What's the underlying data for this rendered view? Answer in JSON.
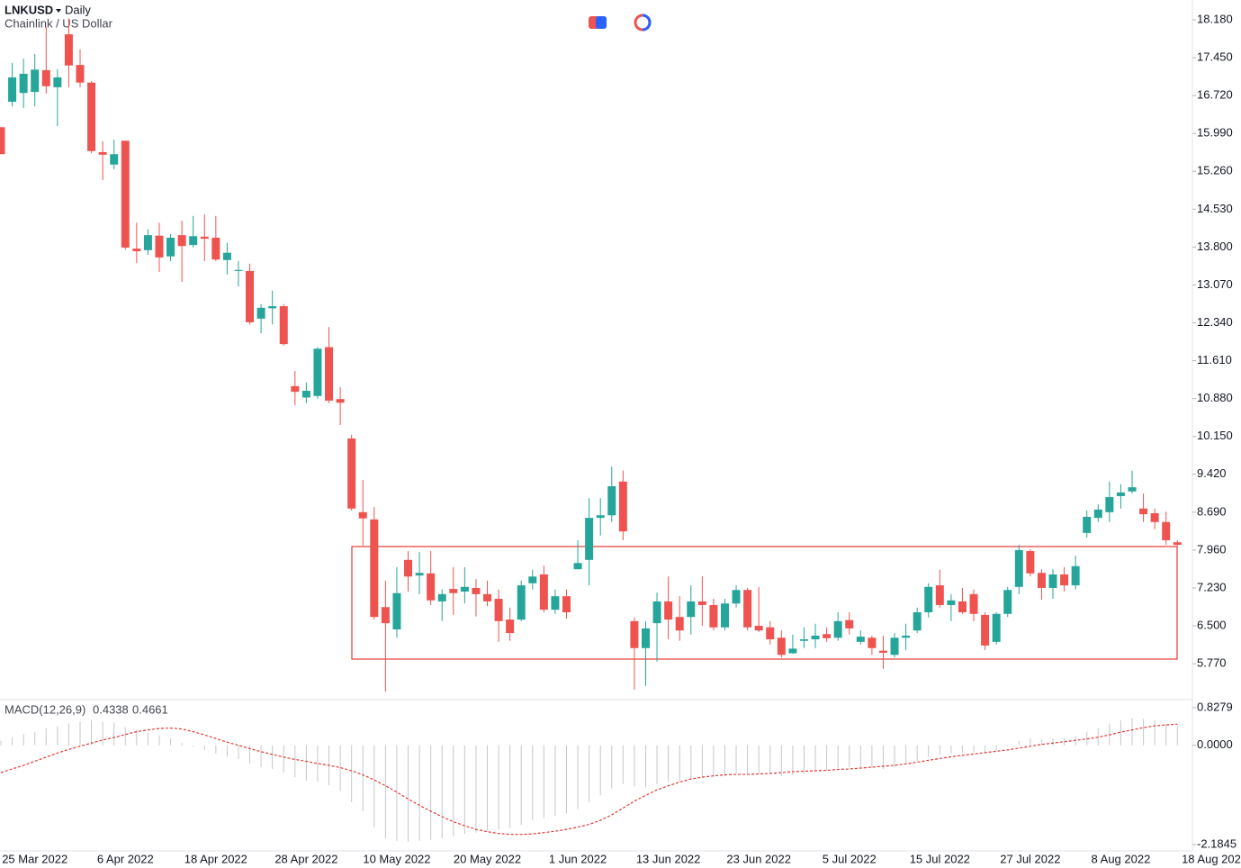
{
  "header": {
    "symbol": "LNKUSD",
    "interval": "Daily",
    "description": "Chainlink / US Dollar"
  },
  "chart_data": [
    {
      "type": "candlestick",
      "categories": [
        null,
        null,
        null,
        "25 Mar 2022",
        null,
        null,
        null,
        null,
        null,
        null,
        null,
        "6 Apr 2022",
        null,
        null,
        null,
        null,
        null,
        null,
        null,
        "18 Apr 2022",
        null,
        null,
        null,
        null,
        null,
        null,
        null,
        "28 Apr 2022",
        null,
        null,
        null,
        null,
        null,
        null,
        null,
        "10 May 2022",
        null,
        null,
        null,
        null,
        null,
        null,
        null,
        "20 May 2022",
        null,
        null,
        null,
        null,
        null,
        null,
        null,
        "1 Jun 2022",
        null,
        null,
        null,
        null,
        null,
        null,
        null,
        "13 Jun 2022",
        null,
        null,
        null,
        null,
        null,
        null,
        null,
        "23 Jun 2022",
        null,
        null,
        null,
        null,
        null,
        null,
        null,
        "5 Jul 2022",
        null,
        null,
        null,
        null,
        null,
        null,
        null,
        "15 Jul 2022",
        null,
        null,
        null,
        null,
        null,
        null,
        null,
        "27 Jul 2022",
        null,
        null,
        null,
        null,
        null,
        null,
        null,
        "8 Aug 2022",
        null,
        null,
        null,
        null,
        null,
        null,
        null,
        "18 Aug 202"
      ],
      "open": [
        16.11,
        16.6,
        16.77,
        16.79,
        17.21,
        16.88,
        17.9,
        17.31,
        16.97,
        15.63,
        15.39,
        15.85,
        13.77,
        13.74,
        14.02,
        13.62,
        14.03,
        13.84,
        14.0,
        13.98,
        13.55,
        13.34,
        13.34,
        12.42,
        12.62,
        12.66,
        11.12,
        10.9,
        10.93,
        11.87,
        10.87,
        10.11,
        8.69,
        8.55,
        6.86,
        6.43,
        7.77,
        7.47,
        7.51,
        6.97,
        7.21,
        7.16,
        7.23,
        7.11,
        7.02,
        6.62,
        6.62,
        7.32,
        7.49,
        6.81,
        7.07,
        7.59,
        7.77,
        8.58,
        8.63,
        9.28,
        6.59,
        6.07,
        6.55,
        6.97,
        6.67,
        6.67,
        6.97,
        6.9,
        6.47,
        6.93,
        7.19,
        6.5,
        6.47,
        6.27,
        5.97,
        6.21,
        6.24,
        6.34,
        6.27,
        6.61,
        6.19,
        6.27,
        6.02,
        5.94,
        6.27,
        6.41,
        6.76,
        7.28,
        6.9,
        6.97,
        7.11,
        6.71,
        6.19,
        6.73,
        7.25,
        7.94,
        7.52,
        7.23,
        7.49,
        7.28,
        8.29,
        8.58,
        8.69,
        9.0,
        9.09,
        8.76,
        8.67,
        8.5,
        8.11,
        null,
        null,
        null
      ],
      "high": [
        16.11,
        17.35,
        17.43,
        17.52,
        18.04,
        17.23,
        18.21,
        17.61,
        17.0,
        15.84,
        15.87,
        15.85,
        14.27,
        14.14,
        14.27,
        14.05,
        14.31,
        14.4,
        14.43,
        14.4,
        13.88,
        13.53,
        13.48,
        12.7,
        12.96,
        12.7,
        11.41,
        11.19,
        11.87,
        12.26,
        11.1,
        10.18,
        9.31,
        8.79,
        7.37,
        7.63,
        7.94,
        7.92,
        7.94,
        7.2,
        7.63,
        7.63,
        7.4,
        7.37,
        7.2,
        6.85,
        7.37,
        7.58,
        7.66,
        7.2,
        7.2,
        8.15,
        8.96,
        8.96,
        9.57,
        9.49,
        6.66,
        6.59,
        7.14,
        7.45,
        7.07,
        7.28,
        7.45,
        7.02,
        7.02,
        7.28,
        7.23,
        7.25,
        6.59,
        6.41,
        6.33,
        6.47,
        6.54,
        6.47,
        6.76,
        6.76,
        6.41,
        6.31,
        6.31,
        6.36,
        6.54,
        6.85,
        7.32,
        7.58,
        7.11,
        7.23,
        7.2,
        6.76,
        6.76,
        7.25,
        8.06,
        7.98,
        7.59,
        7.59,
        7.63,
        7.85,
        8.72,
        8.84,
        9.28,
        9.23,
        9.49,
        9.05,
        8.76,
        8.7,
        8.15,
        null,
        null,
        null
      ],
      "low": [
        15.59,
        16.51,
        16.48,
        16.51,
        16.76,
        16.13,
        16.88,
        16.88,
        15.61,
        15.09,
        15.3,
        13.75,
        13.49,
        13.65,
        13.32,
        13.53,
        13.13,
        13.79,
        13.53,
        13.53,
        13.27,
        13.04,
        12.31,
        12.14,
        12.31,
        11.9,
        10.75,
        10.79,
        10.88,
        10.79,
        10.37,
        8.72,
        8.05,
        6.62,
        5.23,
        6.27,
        7.16,
        7.11,
        6.9,
        6.59,
        6.71,
        6.93,
        6.68,
        6.88,
        6.19,
        6.21,
        6.59,
        7.2,
        6.76,
        6.73,
        6.64,
        7.59,
        7.28,
        8.24,
        8.5,
        8.15,
        5.27,
        5.34,
        5.81,
        6.24,
        6.21,
        6.33,
        6.5,
        6.41,
        6.41,
        6.85,
        6.41,
        6.38,
        6.14,
        5.89,
        5.96,
        6.07,
        6.07,
        6.19,
        6.21,
        6.33,
        6.14,
        5.94,
        5.67,
        5.89,
        6.03,
        6.36,
        6.66,
        6.85,
        6.59,
        6.73,
        6.59,
        6.03,
        6.14,
        6.67,
        7.11,
        7.45,
        7.0,
        7.02,
        7.16,
        7.2,
        8.2,
        8.5,
        8.5,
        8.76,
        9.05,
        8.5,
        8.36,
        8.06,
        8.04,
        null,
        null,
        null
      ],
      "close": [
        15.59,
        17.07,
        17.14,
        17.22,
        16.9,
        17.07,
        17.3,
        16.97,
        15.65,
        15.58,
        15.59,
        13.79,
        13.72,
        14.03,
        13.6,
        13.98,
        13.82,
        14.01,
        13.96,
        13.56,
        13.69,
        13.36,
        12.35,
        12.63,
        12.66,
        11.93,
        11.01,
        11.03,
        11.84,
        10.84,
        10.8,
        8.76,
        8.57,
        6.67,
        6.55,
        7.13,
        7.45,
        7.52,
        6.99,
        7.11,
        7.13,
        7.25,
        7.11,
        6.97,
        6.59,
        6.36,
        7.28,
        7.45,
        6.81,
        7.07,
        6.76,
        7.71,
        8.58,
        8.63,
        9.19,
        8.32,
        6.07,
        6.45,
        6.97,
        6.62,
        6.41,
        6.97,
        6.9,
        6.47,
        6.93,
        7.19,
        6.47,
        6.41,
        6.24,
        5.94,
        6.06,
        6.24,
        6.31,
        6.26,
        6.59,
        6.45,
        6.29,
        6.07,
        5.98,
        6.27,
        6.31,
        6.76,
        7.25,
        6.9,
        6.99,
        6.76,
        6.73,
        6.12,
        6.73,
        7.19,
        7.96,
        7.51,
        7.23,
        7.49,
        7.28,
        7.65,
        8.6,
        8.74,
        8.98,
        9.07,
        9.17,
        8.65,
        8.5,
        8.15,
        8.06,
        null,
        null,
        null
      ],
      "up_color": "#26a69a",
      "down_color": "#ef5350",
      "ylim": [
        5.077,
        18.562
      ],
      "yticks": [
        {
          "value": 18.18,
          "label": "18.180"
        },
        {
          "value": 17.45,
          "label": "17.450"
        },
        {
          "value": 16.72,
          "label": "16.720"
        },
        {
          "value": 15.99,
          "label": "15.990"
        },
        {
          "value": 15.26,
          "label": "15.260"
        },
        {
          "value": 14.53,
          "label": "14.530"
        },
        {
          "value": 13.8,
          "label": "13.800"
        },
        {
          "value": 13.07,
          "label": "13.070"
        },
        {
          "value": 12.34,
          "label": "12.340"
        },
        {
          "value": 11.61,
          "label": "11.610"
        },
        {
          "value": 10.88,
          "label": "10.880"
        },
        {
          "value": 10.15,
          "label": "10.150"
        },
        {
          "value": 9.42,
          "label": "9.420"
        },
        {
          "value": 8.69,
          "label": "8.690"
        },
        {
          "value": 7.96,
          "label": "7.960"
        },
        {
          "value": 7.23,
          "label": "7.230"
        },
        {
          "value": 6.5,
          "label": "6.500"
        },
        {
          "value": 5.77,
          "label": "5.770"
        }
      ]
    },
    {
      "type": "macd",
      "title": "MACD(12,26,9)",
      "legend_values": [
        0.4338,
        0.4661
      ],
      "series": [
        {
          "color": "#c4c7cc",
          "style": "histogram",
          "values": [
            0.1,
            0.18,
            0.25,
            0.3,
            0.38,
            0.42,
            0.48,
            0.52,
            0.55,
            0.52,
            0.5,
            0.4,
            0.35,
            0.28,
            0.22,
            0.15,
            0.05,
            -0.02,
            -0.1,
            -0.18,
            -0.25,
            -0.3,
            -0.4,
            -0.48,
            -0.52,
            -0.6,
            -0.7,
            -0.78,
            -0.8,
            -0.88,
            -1.0,
            -1.25,
            -1.45,
            -1.8,
            -2.05,
            -2.1,
            -2.12,
            -2.1,
            -2.08,
            -2.05,
            -2.0,
            -1.95,
            -1.92,
            -1.88,
            -1.85,
            -1.82,
            -1.75,
            -1.65,
            -1.6,
            -1.55,
            -1.5,
            -1.4,
            -1.25,
            -1.1,
            -0.95,
            -0.85,
            -0.9,
            -0.92,
            -0.85,
            -0.8,
            -0.78,
            -0.74,
            -0.7,
            -0.7,
            -0.68,
            -0.62,
            -0.62,
            -0.62,
            -0.64,
            -0.68,
            -0.66,
            -0.62,
            -0.58,
            -0.56,
            -0.5,
            -0.48,
            -0.48,
            -0.5,
            -0.52,
            -0.48,
            -0.42,
            -0.35,
            -0.25,
            -0.2,
            -0.18,
            -0.16,
            -0.15,
            -0.18,
            -0.12,
            -0.02,
            0.1,
            0.15,
            0.14,
            0.15,
            0.16,
            0.2,
            0.3,
            0.38,
            0.48,
            0.55,
            0.6,
            0.58,
            0.55,
            0.48,
            0.4338,
            null,
            null,
            null
          ]
        },
        {
          "color": "#e53935",
          "style": "dashed",
          "values": [
            -0.6,
            -0.52,
            -0.44,
            -0.35,
            -0.26,
            -0.17,
            -0.09,
            -0.02,
            0.05,
            0.12,
            0.17,
            0.24,
            0.3,
            0.34,
            0.37,
            0.38,
            0.36,
            0.3,
            0.23,
            0.15,
            0.07,
            0.0,
            -0.07,
            -0.14,
            -0.2,
            -0.26,
            -0.31,
            -0.35,
            -0.4,
            -0.44,
            -0.49,
            -0.56,
            -0.65,
            -0.76,
            -0.89,
            -1.03,
            -1.18,
            -1.32,
            -1.45,
            -1.57,
            -1.68,
            -1.77,
            -1.85,
            -1.9,
            -1.94,
            -1.96,
            -1.96,
            -1.95,
            -1.92,
            -1.89,
            -1.85,
            -1.8,
            -1.74,
            -1.65,
            -1.53,
            -1.38,
            -1.23,
            -1.1,
            -0.98,
            -0.89,
            -0.81,
            -0.74,
            -0.7,
            -0.67,
            -0.65,
            -0.64,
            -0.64,
            -0.63,
            -0.62,
            -0.6,
            -0.58,
            -0.57,
            -0.56,
            -0.55,
            -0.53,
            -0.52,
            -0.5,
            -0.48,
            -0.46,
            -0.44,
            -0.41,
            -0.37,
            -0.33,
            -0.29,
            -0.25,
            -0.22,
            -0.19,
            -0.16,
            -0.13,
            -0.1,
            -0.06,
            -0.02,
            0.02,
            0.05,
            0.08,
            0.11,
            0.14,
            0.18,
            0.23,
            0.29,
            0.34,
            0.39,
            0.43,
            0.45,
            0.4661,
            null,
            null,
            null
          ]
        }
      ],
      "ylim": [
        -2.3232,
        0.9865
      ],
      "yticks": [
        0.8279,
        {
          "value": 0,
          "label": "0.0000"
        },
        -2.1845
      ]
    }
  ]
}
